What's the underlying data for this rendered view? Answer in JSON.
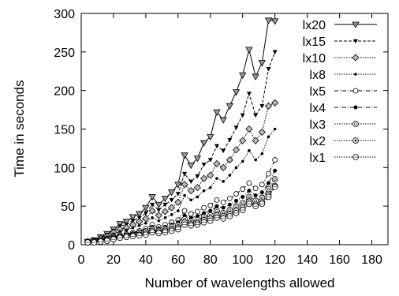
{
  "chart_data": {
    "type": "line",
    "title": "",
    "xlabel": "Number of wavelengths allowed",
    "ylabel": "Time in seconds",
    "xlim": [
      0,
      190
    ],
    "ylim": [
      0,
      300
    ],
    "xticks": [
      0,
      20,
      40,
      60,
      80,
      100,
      120,
      140,
      160,
      180
    ],
    "yticks": [
      0,
      50,
      100,
      150,
      200,
      250,
      300
    ],
    "grid": false,
    "legend_position": "top-right",
    "x": [
      4,
      8,
      12,
      16,
      20,
      24,
      28,
      32,
      36,
      40,
      44,
      48,
      52,
      56,
      60,
      64,
      68,
      72,
      76,
      80,
      84,
      88,
      92,
      96,
      100,
      104,
      108,
      112,
      116,
      120
    ],
    "series": [
      {
        "name": "lx20",
        "marker": "triangle-down",
        "dash": "solid",
        "values": [
          4,
          6,
          10,
          14,
          20,
          27,
          30,
          36,
          40,
          48,
          62,
          52,
          60,
          68,
          78,
          116,
          103,
          112,
          132,
          140,
          172,
          162,
          180,
          198,
          220,
          253,
          218,
          236,
          291,
          290
        ]
      },
      {
        "name": "lx15",
        "marker": "small-triangle",
        "dash": "dashed",
        "values": [
          4,
          6,
          9,
          13,
          18,
          24,
          26,
          31,
          35,
          41,
          52,
          45,
          52,
          58,
          66,
          92,
          82,
          89,
          104,
          110,
          128,
          122,
          136,
          152,
          168,
          196,
          168,
          180,
          228,
          250
        ]
      },
      {
        "name": "lx10",
        "marker": "diamond",
        "dash": "dotted",
        "values": [
          4,
          5,
          8,
          11,
          16,
          20,
          22,
          26,
          30,
          34,
          44,
          38,
          43,
          48,
          55,
          78,
          70,
          74,
          86,
          90,
          105,
          100,
          110,
          123,
          135,
          150,
          135,
          146,
          180,
          184
        ]
      },
      {
        "name": "lx8",
        "marker": "plus-dot",
        "dash": "dotted",
        "values": [
          3,
          5,
          7,
          10,
          14,
          17,
          19,
          22,
          25,
          28,
          35,
          31,
          35,
          39,
          44,
          64,
          58,
          62,
          70,
          74,
          86,
          82,
          90,
          100,
          108,
          122,
          110,
          118,
          140,
          150
        ]
      },
      {
        "name": "lx5",
        "marker": "circle",
        "dash": "dash-dot",
        "values": [
          3,
          4,
          6,
          8,
          11,
          13,
          14,
          16,
          18,
          21,
          26,
          23,
          26,
          29,
          32,
          44,
          40,
          43,
          48,
          51,
          58,
          55,
          60,
          66,
          72,
          80,
          73,
          78,
          92,
          110
        ]
      },
      {
        "name": "lx4",
        "marker": "filled-circle",
        "dash": "dash-dot",
        "values": [
          3,
          4,
          6,
          7,
          10,
          12,
          13,
          15,
          17,
          19,
          23,
          21,
          23,
          26,
          29,
          38,
          35,
          37,
          41,
          44,
          50,
          48,
          52,
          57,
          62,
          70,
          64,
          68,
          80,
          96
        ]
      },
      {
        "name": "lx3",
        "marker": "double-circle",
        "dash": "dotted",
        "values": [
          3,
          4,
          5,
          7,
          9,
          11,
          12,
          13,
          15,
          17,
          20,
          18,
          20,
          23,
          25,
          33,
          30,
          32,
          36,
          38,
          44,
          41,
          45,
          50,
          54,
          62,
          57,
          61,
          72,
          85
        ]
      },
      {
        "name": "lx2",
        "marker": "dot-circle",
        "dash": "dotted",
        "values": [
          3,
          4,
          5,
          6,
          8,
          10,
          11,
          12,
          13,
          15,
          18,
          16,
          18,
          20,
          22,
          29,
          27,
          28,
          32,
          34,
          38,
          37,
          40,
          44,
          48,
          56,
          52,
          55,
          65,
          76
        ]
      },
      {
        "name": "lx1",
        "marker": "circle-dot",
        "dash": "dotted",
        "values": [
          3,
          3,
          4,
          5,
          7,
          9,
          10,
          11,
          12,
          13,
          16,
          15,
          16,
          18,
          20,
          26,
          25,
          26,
          29,
          31,
          35,
          34,
          37,
          41,
          45,
          53,
          50,
          53,
          62,
          75
        ]
      }
    ]
  }
}
